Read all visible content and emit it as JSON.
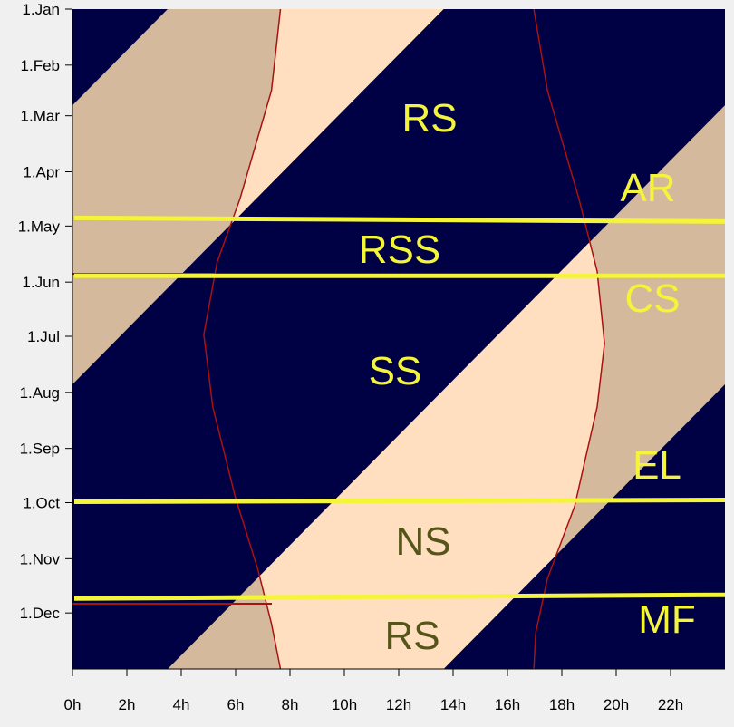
{
  "chart_data": {
    "type": "daynight",
    "xlim": [
      0,
      24
    ],
    "xticks": [
      {
        "value": 0,
        "label": "0h"
      },
      {
        "value": 2,
        "label": "2h"
      },
      {
        "value": 4,
        "label": "4h"
      },
      {
        "value": 6,
        "label": "6h"
      },
      {
        "value": 8,
        "label": "8h"
      },
      {
        "value": 10,
        "label": "10h"
      },
      {
        "value": 12,
        "label": "12h"
      },
      {
        "value": 14,
        "label": "14h"
      },
      {
        "value": 16,
        "label": "16h"
      },
      {
        "value": 18,
        "label": "18h"
      },
      {
        "value": 20,
        "label": "20h"
      },
      {
        "value": 22,
        "label": "22h"
      }
    ],
    "ylim": [
      0,
      365
    ],
    "yticks": [
      {
        "value": 0,
        "label": "1.Jan"
      },
      {
        "value": 31,
        "label": "1.Feb"
      },
      {
        "value": 59,
        "label": "1.Mar"
      },
      {
        "value": 90,
        "label": "1.Apr"
      },
      {
        "value": 120,
        "label": "1.May"
      },
      {
        "value": 151,
        "label": "1.Jun"
      },
      {
        "value": 181,
        "label": "1.Jul"
      },
      {
        "value": 212,
        "label": "1.Aug"
      },
      {
        "value": 243,
        "label": "1.Sep"
      },
      {
        "value": 273,
        "label": "1.Oct"
      },
      {
        "value": 304,
        "label": "1.Nov"
      },
      {
        "value": 334,
        "label": "1.Dec"
      }
    ],
    "night_color": "#000044",
    "twilight_color": "#d5b99c",
    "day_color": "#ffdfbf",
    "bands": {
      "start": 3.5,
      "end": 13.65
    },
    "series": [
      {
        "color": "#aa1111",
        "x": [
          7.65,
          7.32,
          6.16,
          5.32,
          4.83,
          5.16,
          5.99,
          6.82,
          7.32,
          7.65
        ],
        "values": [
          0,
          45,
          105,
          140,
          180,
          220,
          270,
          310,
          340,
          365
        ]
      },
      {
        "color": "#aa1111",
        "x": [
          16.97,
          17.47,
          18.63,
          19.3,
          19.57,
          19.3,
          18.47,
          17.47,
          17.04,
          16.97
        ],
        "values": [
          0,
          45,
          105,
          145,
          185,
          220,
          275,
          315,
          345,
          365
        ]
      }
    ],
    "lines": {
      "color": "#f4f43a",
      "values": [
        [
          115.5,
          117.5
        ],
        [
          147.5,
          147.5
        ],
        [
          272.5,
          271.5
        ],
        [
          326,
          324
        ]
      ]
    },
    "labels": [
      "RS",
      "AR",
      "RSS",
      "CS",
      "SS",
      "EL",
      "NS",
      "RS",
      "MF"
    ]
  }
}
